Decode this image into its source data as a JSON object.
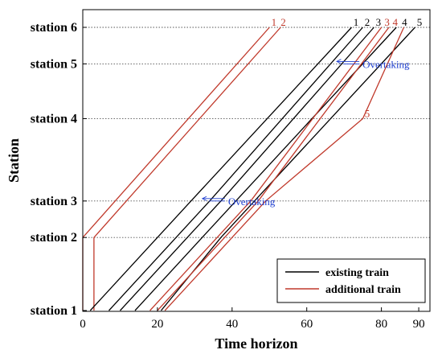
{
  "chart_data": {
    "type": "line",
    "xlabel": "Time horizon",
    "ylabel": "Station",
    "xlim": [
      0,
      93
    ],
    "x_ticks": [
      "0",
      "20",
      "40",
      "60",
      "80",
      "90"
    ],
    "x_tick_values": [
      0,
      20,
      40,
      60,
      80,
      90
    ],
    "stations": [
      {
        "label": "station 1",
        "position": 0
      },
      {
        "label": "station 2",
        "position": 19.6
      },
      {
        "label": "station 3",
        "position": 29.4
      },
      {
        "label": "station 4",
        "position": 51.5
      },
      {
        "label": "station 5",
        "position": 66.2
      },
      {
        "label": "station 6",
        "position": 76
      }
    ],
    "grid": "dotted lines at each station",
    "legend": {
      "placement": "bottom-right",
      "entries": [
        {
          "label": "existing train",
          "color": "#000000"
        },
        {
          "label": "additional train",
          "color": "#c0392b"
        }
      ]
    },
    "colors": {
      "existing": "#000000",
      "additional": "#c0392b",
      "annotation": "#1f3fd0"
    },
    "series": [
      {
        "type": "additional",
        "id_label": "1",
        "points": [
          [
            0,
            0
          ],
          [
            0,
            19.6
          ],
          [
            50,
            76
          ]
        ]
      },
      {
        "type": "additional",
        "id_label": "2",
        "points": [
          [
            3,
            0
          ],
          [
            3,
            19.6
          ],
          [
            53,
            76
          ]
        ]
      },
      {
        "type": "existing",
        "id_label": "1",
        "points": [
          [
            2,
            0
          ],
          [
            20,
            19.6
          ],
          [
            29,
            29.4
          ],
          [
            72,
            76
          ]
        ]
      },
      {
        "type": "existing",
        "id_label": "2",
        "points": [
          [
            7,
            0
          ],
          [
            25,
            19.6
          ],
          [
            34,
            29.4
          ],
          [
            75,
            76
          ]
        ]
      },
      {
        "type": "existing",
        "id_label": "3",
        "points": [
          [
            10,
            0
          ],
          [
            28,
            19.6
          ],
          [
            37,
            29.4
          ],
          [
            78,
            76
          ]
        ]
      },
      {
        "type": "existing",
        "id_label": "4",
        "points": [
          [
            14,
            0
          ],
          [
            32,
            19.6
          ],
          [
            41,
            29.4
          ],
          [
            84,
            76
          ]
        ]
      },
      {
        "type": "existing",
        "id_label": "5",
        "points": [
          [
            21,
            0
          ],
          [
            37,
            19.6
          ],
          [
            46,
            29.4
          ],
          [
            89,
            76
          ]
        ]
      },
      {
        "type": "additional",
        "id_label": "3",
        "points": [
          [
            18,
            0
          ],
          [
            36,
            19.6
          ],
          [
            45,
            29.4
          ],
          [
            80,
            76
          ]
        ]
      },
      {
        "type": "additional",
        "id_label": "4",
        "points": [
          [
            20,
            0
          ],
          [
            38,
            19.6
          ],
          [
            47,
            29.4
          ],
          [
            82,
            76
          ]
        ]
      },
      {
        "type": "additional",
        "id_label": "5",
        "points": [
          [
            22,
            0
          ],
          [
            40,
            19.6
          ],
          [
            49,
            29.4
          ],
          [
            75,
            51.5
          ],
          [
            86,
            76
          ]
        ]
      }
    ],
    "id_labels": [
      {
        "text": "1",
        "color": "#c0392b",
        "x": 50.5,
        "y": 76
      },
      {
        "text": "2",
        "color": "#c0392b",
        "x": 53,
        "y": 76
      },
      {
        "text": "1",
        "color": "#000000",
        "x": 72.5,
        "y": 76
      },
      {
        "text": "2",
        "color": "#000000",
        "x": 75.5,
        "y": 76
      },
      {
        "text": "3",
        "color": "#000000",
        "x": 78.5,
        "y": 76
      },
      {
        "text": "3",
        "color": "#c0392b",
        "x": 80.8,
        "y": 76
      },
      {
        "text": "4",
        "color": "#c0392b",
        "x": 83,
        "y": 76
      },
      {
        "text": "4",
        "color": "#000000",
        "x": 85.5,
        "y": 76
      },
      {
        "text": "5",
        "color": "#000000",
        "x": 89.5,
        "y": 76
      },
      {
        "text": "5",
        "color": "#c0392b",
        "x": 75.5,
        "y": 51.5
      }
    ],
    "annotations": [
      {
        "text": "Overtaking",
        "x": 38.5,
        "y": 29.4
      },
      {
        "text": "Overtaking",
        "x": 74.5,
        "y": 66.2
      }
    ]
  }
}
